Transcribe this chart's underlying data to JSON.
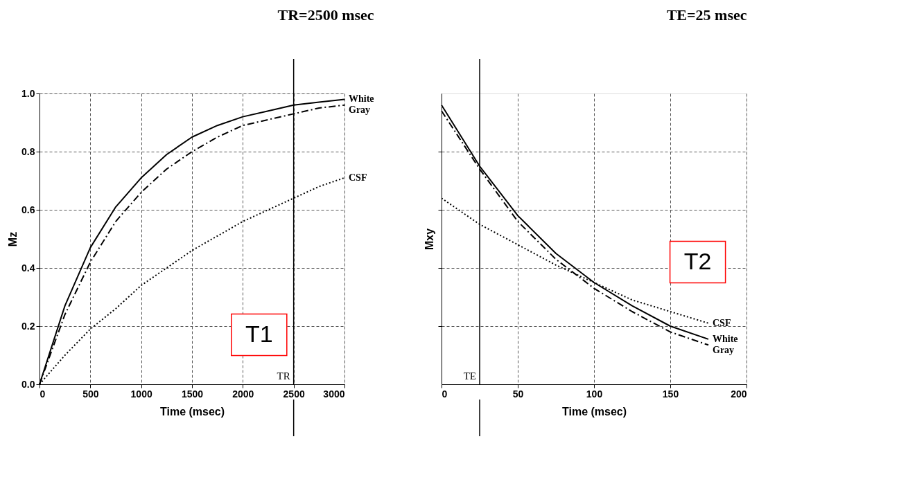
{
  "chart_data": [
    {
      "type": "line",
      "title": "TR=2500 msec",
      "xlabel": "Time (msec)",
      "ylabel": "Mz",
      "x": [
        0,
        250,
        500,
        750,
        1000,
        1250,
        1500,
        1750,
        2000,
        2250,
        2500,
        2750,
        3000
      ],
      "series": [
        {
          "name": "White",
          "color": "#000000",
          "line_style": "solid",
          "values": [
            0,
            0.27,
            0.47,
            0.61,
            0.71,
            0.79,
            0.85,
            0.89,
            0.92,
            0.94,
            0.96,
            0.97,
            0.98
          ]
        },
        {
          "name": "Gray",
          "color": "#000000",
          "line_style": "dashed",
          "values": [
            0,
            0.24,
            0.42,
            0.56,
            0.66,
            0.74,
            0.8,
            0.85,
            0.89,
            0.91,
            0.93,
            0.95,
            0.96
          ]
        },
        {
          "name": "CSF",
          "color": "#000000",
          "line_style": "dotted",
          "values": [
            0,
            0.1,
            0.19,
            0.26,
            0.34,
            0.4,
            0.46,
            0.51,
            0.56,
            0.6,
            0.64,
            0.68,
            0.71
          ]
        }
      ],
      "xlim": [
        0,
        3000
      ],
      "xticks": [
        0,
        500,
        1000,
        1500,
        2000,
        2500,
        3000
      ],
      "ylim": [
        0,
        1
      ],
      "yticks": [
        {
          "value": 0,
          "label": "0.0"
        },
        0.2,
        0.4,
        0.6,
        0.8,
        {
          "value": 1,
          "label": "1.0"
        }
      ],
      "grid": true,
      "ref_lines": [
        {
          "axis": "x",
          "value": 2500,
          "label": "TR",
          "color": "#000000"
        }
      ],
      "annotations": [
        "T1"
      ]
    },
    {
      "type": "line",
      "title": "TE=25 msec",
      "xlabel": "Time (msec)",
      "ylabel": "Mxy",
      "x": [
        0,
        25,
        50,
        75,
        100,
        125,
        150,
        175
      ],
      "series": [
        {
          "name": "White",
          "color": "#000000",
          "line_style": "solid",
          "values": [
            0.96,
            0.75,
            0.58,
            0.45,
            0.35,
            0.27,
            0.2,
            0.155
          ]
        },
        {
          "name": "Gray",
          "color": "#000000",
          "line_style": "dashed",
          "values": [
            0.94,
            0.74,
            0.56,
            0.43,
            0.33,
            0.25,
            0.18,
            0.135
          ]
        },
        {
          "name": "CSF",
          "color": "#000000",
          "line_style": "dotted",
          "values": [
            0.64,
            0.55,
            0.48,
            0.41,
            0.35,
            0.29,
            0.25,
            0.21
          ]
        }
      ],
      "xlim": [
        0,
        200
      ],
      "xticks": [
        0,
        50,
        100,
        150,
        200
      ],
      "ylim": [
        0,
        1
      ],
      "yticks": [
        {
          "value": 0.2,
          "label": null
        },
        {
          "value": 0.4,
          "label": null
        },
        {
          "value": 0.6,
          "label": null
        },
        {
          "value": 0.8,
          "label": null
        }
      ],
      "tick_labels": "x",
      "grid": true,
      "ref_lines": [
        {
          "axis": "x",
          "value": 25,
          "label": "TE",
          "color": "#000000"
        }
      ],
      "annotations": [
        "T2"
      ]
    }
  ]
}
